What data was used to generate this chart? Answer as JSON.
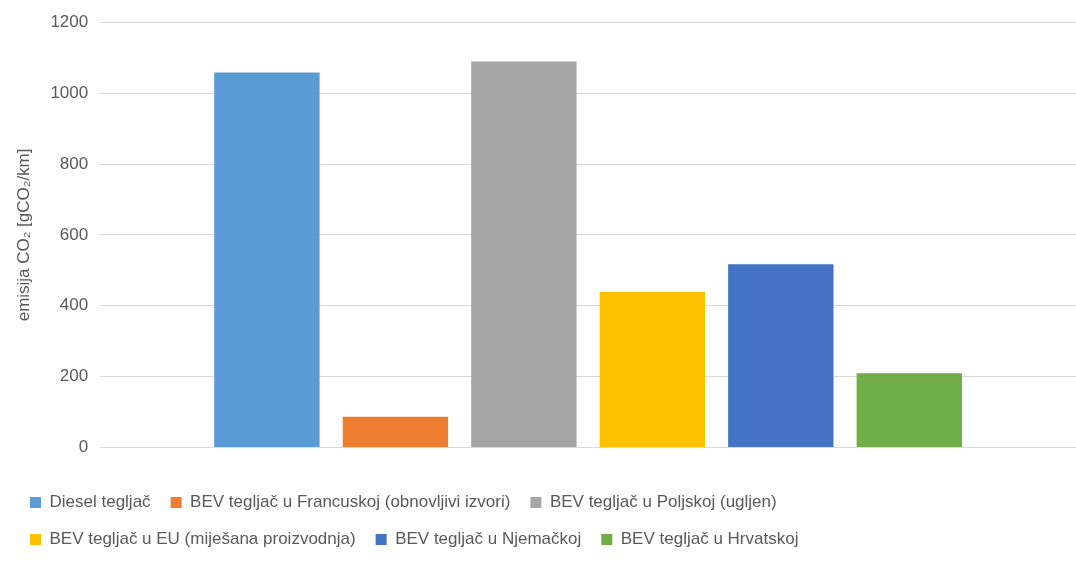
{
  "chart_data": {
    "type": "bar",
    "ylabel": "emisija CO₂ [gCO₂/km]",
    "categories": [
      null
    ],
    "series": [
      {
        "name": "Diesel tegljač",
        "color": "#5b9bd5",
        "values": [
          1058
        ]
      },
      {
        "name": "BEV tegljač u Francuskoj (obnovljivi izvori)",
        "color": "#ed7d31",
        "values": [
          87
        ]
      },
      {
        "name": "BEV tegljač u Poljskoj (ugljen)",
        "color": "#a5a5a5",
        "values": [
          1089
        ]
      },
      {
        "name": "BEV tegljač u EU (miješana proizvodnja)",
        "color": "#ffc000",
        "values": [
          439
        ]
      },
      {
        "name": "BEV tegljač u Njemačkoj",
        "color": "#4472c4",
        "values": [
          517
        ]
      },
      {
        "name": "BEV tegljač u Hrvatskoj",
        "color": "#70ad47",
        "values": [
          210
        ]
      }
    ],
    "ylim": [
      0,
      1200
    ],
    "yticks": [
      0,
      200,
      400,
      600,
      800,
      1000,
      1200
    ],
    "grid": "y",
    "legend": "bottom"
  }
}
